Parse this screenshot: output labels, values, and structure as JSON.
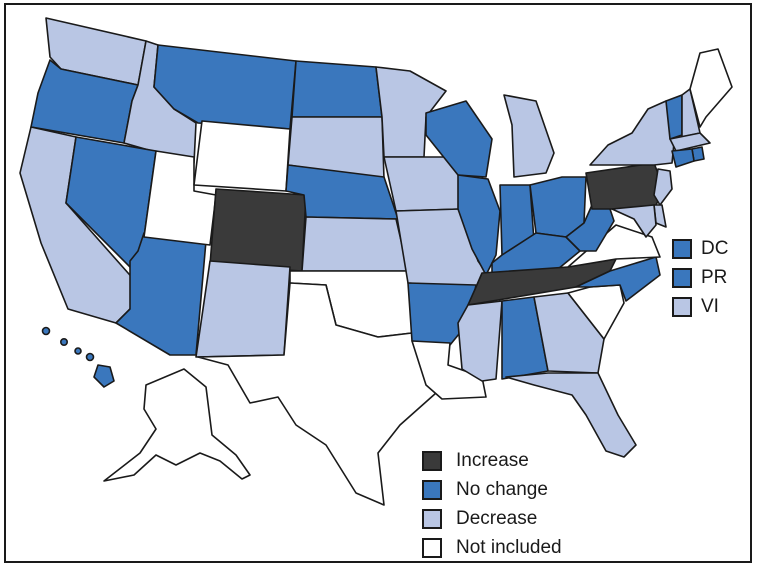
{
  "colors": {
    "increase": "#3a3a3a",
    "no_change": "#3a77bd",
    "decrease": "#b9c6e4",
    "not_included": "#ffffff"
  },
  "legend": [
    {
      "key": "increase",
      "label": "Increase"
    },
    {
      "key": "no_change",
      "label": "No change"
    },
    {
      "key": "decrease",
      "label": "Decrease"
    },
    {
      "key": "not_included",
      "label": "Not included"
    }
  ],
  "territories": [
    {
      "label": "DC",
      "status": "no_change"
    },
    {
      "label": "PR",
      "status": "no_change"
    },
    {
      "label": "VI",
      "status": "decrease"
    }
  ],
  "states": {
    "WA": "decrease",
    "OR": "no_change",
    "CA": "decrease",
    "ID": "decrease",
    "NV": "no_change",
    "AZ": "no_change",
    "UT": "not_included",
    "MT": "no_change",
    "WY": "not_included",
    "CO": "increase",
    "NM": "decrease",
    "ND": "no_change",
    "SD": "decrease",
    "NE": "no_change",
    "KS": "decrease",
    "OK": "not_included",
    "TX": "not_included",
    "MN": "decrease",
    "IA": "decrease",
    "MO": "decrease",
    "AR": "no_change",
    "LA": "not_included",
    "WI": "no_change",
    "IL": "no_change",
    "MI": "decrease",
    "IN": "no_change",
    "OH": "no_change",
    "KY": "no_change",
    "TN": "increase",
    "MS": "decrease",
    "AL": "no_change",
    "GA": "decrease",
    "FL": "decrease",
    "SC": "not_included",
    "NC": "no_change",
    "VA": "not_included",
    "WV": "no_change",
    "PA": "increase",
    "NY": "decrease",
    "VT": "no_change",
    "NH": "decrease",
    "ME": "not_included",
    "MA": "decrease",
    "RI": "no_change",
    "CT": "no_change",
    "NJ": "decrease",
    "DE": "decrease",
    "MD": "decrease",
    "AK": "not_included",
    "HI": "no_change"
  }
}
